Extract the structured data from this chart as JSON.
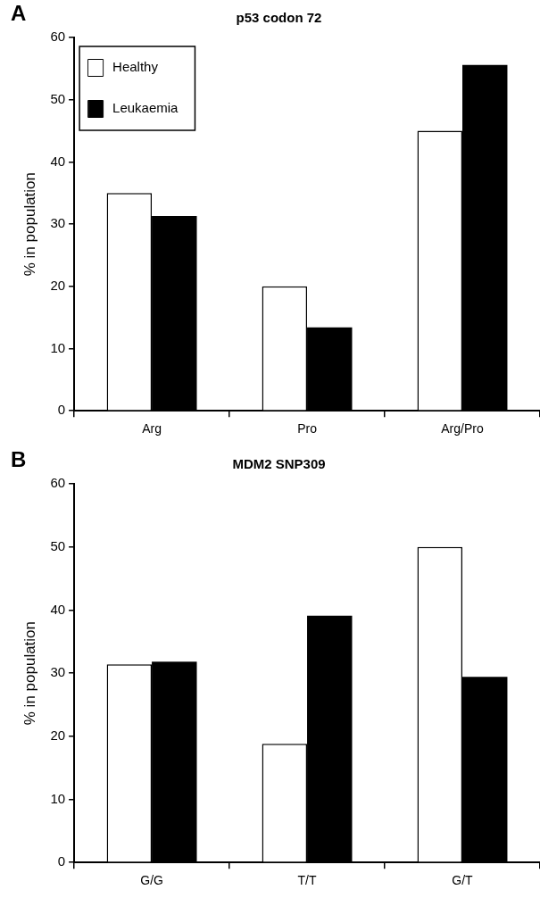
{
  "chart_data": [
    {
      "type": "bar",
      "title": "p53 codon 72",
      "ylabel": "% in population",
      "annotations": [
        "A"
      ],
      "categories": [
        "Arg",
        "Pro",
        "Arg/Pro"
      ],
      "series": [
        {
          "name": "Healthy",
          "color": "#ffffff",
          "values": [
            35,
            20,
            45
          ]
        },
        {
          "name": "Leukaemia",
          "color": "#000000",
          "values": [
            31.3,
            13.4,
            55.6
          ]
        }
      ],
      "ylim": [
        0,
        60
      ],
      "yticks": [
        0,
        10,
        20,
        30,
        40,
        50,
        60
      ],
      "grid": false,
      "legend": "top left"
    },
    {
      "type": "bar",
      "title": "MDM2 SNP309",
      "ylabel": "% in population",
      "annotations": [
        "B"
      ],
      "categories": [
        "G/G",
        "T/T",
        "G/T"
      ],
      "series": [
        {
          "color": "#ffffff",
          "values": [
            31.4,
            18.8,
            50
          ]
        },
        {
          "color": "#000000",
          "values": [
            31.8,
            39.1,
            29.4
          ]
        }
      ],
      "ylim": [
        0,
        60
      ],
      "yticks": [
        0,
        10,
        20,
        30,
        40,
        50,
        60
      ],
      "grid": false,
      "legend": false
    }
  ]
}
